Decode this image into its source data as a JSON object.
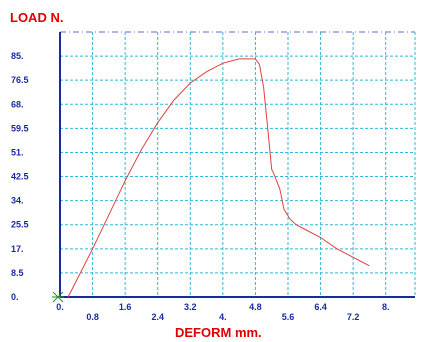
{
  "chart_data": {
    "type": "line",
    "ylabel": "LOAD  N.",
    "xlabel": "DEFORM  mm.",
    "xlim": [
      0,
      8.4
    ],
    "ylim": [
      0,
      93.5
    ],
    "x_ticks_upper": [
      "0.",
      "1.6",
      "3.2",
      "4.8",
      "6.4",
      "8."
    ],
    "x_ticks_lower": [
      "0.8",
      "2.4",
      "4.",
      "5.6",
      "7.2"
    ],
    "y_ticks": [
      "0.",
      "8.5",
      "17.",
      "25.5",
      "34.",
      "42.5",
      "51.",
      "59.5",
      "68.",
      "76.5",
      "85."
    ],
    "grid": true,
    "colors": {
      "curve": "#e04040",
      "grid": "#30b8d8",
      "axis": "#1a2aa0",
      "labels": "#e00000",
      "ticks": "#1a2aa0",
      "topline": "#6a6ad0"
    },
    "series": [
      {
        "x": [
          0.2,
          0.5,
          0.8,
          1.2,
          1.6,
          2.0,
          2.4,
          2.8,
          3.2,
          3.6,
          4.0,
          4.4,
          4.6,
          4.8,
          4.9,
          5.0,
          5.1,
          5.2,
          5.25,
          5.4,
          5.5,
          5.65,
          5.8,
          6.0,
          6.4,
          6.8,
          7.2,
          7.6
        ],
        "y": [
          0,
          8.5,
          17,
          29,
          41,
          52,
          61.5,
          69.5,
          75.5,
          79.5,
          82.5,
          84,
          84,
          84,
          82,
          74,
          60,
          45,
          43.5,
          38,
          31,
          27.5,
          25.5,
          24,
          21,
          17,
          14,
          11
        ]
      }
    ]
  }
}
